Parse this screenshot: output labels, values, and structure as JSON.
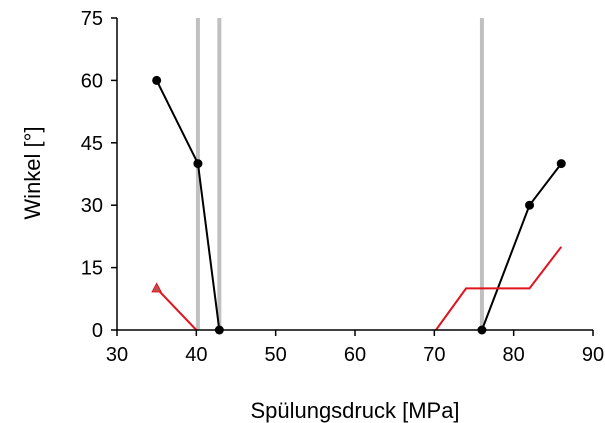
{
  "chart_data": {
    "type": "line",
    "xlabel": "Spülungsdruck [MPa]",
    "ylabel": "Winkel [°]",
    "xlim": [
      30,
      90
    ],
    "ylim": [
      0,
      75
    ],
    "xticks": [
      30,
      40,
      50,
      60,
      70,
      80,
      90
    ],
    "yticks": [
      0,
      15,
      30,
      45,
      60,
      75
    ],
    "grid": false,
    "vertical_lines": {
      "color": "#c0c0c0",
      "x": [
        40.2,
        42.9,
        76.0
      ]
    },
    "series": [
      {
        "color": "#000000",
        "marker": "circle",
        "segments": [
          [
            [
              35,
              60
            ],
            [
              40.2,
              40
            ],
            [
              42.9,
              0
            ]
          ],
          [
            [
              76,
              0
            ],
            [
              82,
              30
            ],
            [
              86,
              40
            ]
          ]
        ]
      },
      {
        "color": "#e0141e",
        "marker": "triangle-first-point",
        "segments": [
          [
            [
              35,
              10
            ],
            [
              40,
              0
            ]
          ],
          [
            [
              70.2,
              0
            ],
            [
              74,
              10
            ],
            [
              82,
              10
            ],
            [
              86,
              20
            ]
          ]
        ]
      }
    ]
  }
}
